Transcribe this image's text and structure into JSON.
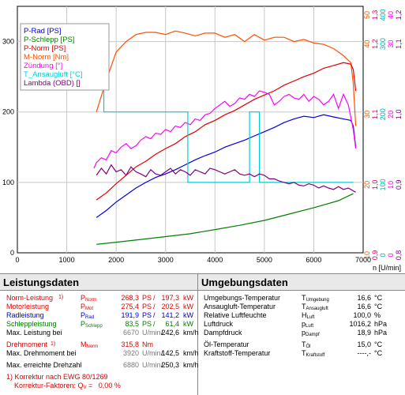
{
  "chart_data": {
    "type": "line",
    "xlabel": "n [U/min]",
    "xlim": [
      0,
      7000
    ],
    "xticks": [
      0,
      1000,
      2000,
      3000,
      4000,
      5000,
      6000,
      7000
    ],
    "left_axis": {
      "ylim": [
        0,
        350
      ],
      "ticks": [
        0,
        100,
        200,
        300
      ]
    },
    "right_axes": [
      {
        "color": "#e06000",
        "ticks": [
          "10",
          "20",
          "30",
          "40",
          "50"
        ]
      },
      {
        "color": "#d0006a",
        "ticks": [
          "0,9",
          "1,0",
          "1,1",
          "1,2",
          "1,3"
        ]
      },
      {
        "color": "#00b0b0",
        "ticks": [
          "0",
          "100",
          "200",
          "300",
          "400"
        ]
      },
      {
        "color": "#ff00ff",
        "ticks": [
          "0",
          "10",
          "20",
          "30",
          "40"
        ]
      },
      {
        "color": "#800080",
        "ticks": [
          "0,8",
          "0,9",
          "1,0",
          "1,1",
          "1,2"
        ]
      }
    ],
    "legend": [
      {
        "label": "P-Rad [PS]",
        "color": "#0000e0"
      },
      {
        "label": "P-Schlepp [PS]",
        "color": "#008000"
      },
      {
        "label": "P-Norm [PS]",
        "color": "#e00000"
      },
      {
        "label": "M-Norm [Nm]",
        "color": "#ff5000"
      },
      {
        "label": "Zündung [°]",
        "color": "#ff00ff"
      },
      {
        "label": "T_Ansaugluft [°C]",
        "color": "#00d0d0"
      },
      {
        "label": "Lambda (OBD) []",
        "color": "#800080"
      }
    ],
    "series": [
      {
        "name": "M-Norm [Nm]",
        "color": "#ff5000",
        "x": [
          1600,
          1800,
          2000,
          2200,
          2400,
          2600,
          2800,
          3000,
          3200,
          3400,
          3600,
          3800,
          4000,
          4200,
          4400,
          4600,
          4800,
          5000,
          5200,
          5400,
          5600,
          5800,
          6000,
          6200,
          6400,
          6600,
          6750,
          6800,
          6850
        ],
        "y": [
          200,
          245,
          285,
          300,
          310,
          313,
          313,
          310,
          315,
          312,
          308,
          312,
          312,
          306,
          310,
          300,
          310,
          302,
          306,
          306,
          300,
          303,
          298,
          296,
          290,
          280,
          270,
          240,
          180
        ]
      },
      {
        "name": "P-Norm [PS]",
        "color": "#e00000",
        "x": [
          1600,
          1800,
          2000,
          2200,
          2400,
          2600,
          2800,
          3000,
          3200,
          3400,
          3600,
          3800,
          4000,
          4200,
          4400,
          4600,
          4800,
          5000,
          5200,
          5400,
          5600,
          5800,
          6000,
          6200,
          6400,
          6600,
          6750,
          6800,
          6850
        ],
        "y": [
          75,
          85,
          98,
          110,
          122,
          130,
          140,
          148,
          155,
          165,
          172,
          182,
          188,
          196,
          202,
          210,
          218,
          224,
          230,
          238,
          244,
          250,
          255,
          262,
          266,
          270,
          268,
          260,
          230
        ]
      },
      {
        "name": "P-Rad [PS]",
        "color": "#0000e0",
        "x": [
          1600,
          1800,
          2000,
          2200,
          2400,
          2600,
          2800,
          3000,
          3200,
          3400,
          3600,
          3800,
          4000,
          4200,
          4400,
          4600,
          4800,
          5000,
          5200,
          5400,
          5600,
          5800,
          6000,
          6200,
          6400,
          6600,
          6750,
          6800,
          6850
        ],
        "y": [
          50,
          60,
          72,
          82,
          92,
          100,
          107,
          112,
          118,
          125,
          132,
          138,
          143,
          150,
          155,
          160,
          166,
          172,
          178,
          185,
          190,
          194,
          192,
          196,
          193,
          190,
          188,
          180,
          150
        ]
      },
      {
        "name": "P-Schlepp [PS]",
        "color": "#008000",
        "x": [
          1600,
          2000,
          2500,
          3000,
          3500,
          4000,
          4500,
          5000,
          5500,
          6000,
          6500,
          6800
        ],
        "y": [
          12,
          15,
          19,
          23,
          27,
          33,
          39,
          46,
          55,
          64,
          74,
          84
        ]
      },
      {
        "name": "Zündung [°]",
        "color": "#ff00ff",
        "x": [
          1550,
          1600,
          1700,
          1800,
          1900,
          2000,
          2100,
          2200,
          2300,
          2400,
          2500,
          2600,
          2700,
          2800,
          2900,
          3000,
          3100,
          3200,
          3300,
          3400,
          3500,
          3600,
          3700,
          3800,
          3900,
          4000,
          4100,
          4200,
          4300,
          4400,
          4500,
          4600,
          4700,
          4800,
          4900,
          5000,
          5100,
          5200,
          5300,
          5400,
          5500,
          5600,
          5700,
          5800,
          5900,
          6000,
          6100,
          6200,
          6300,
          6400,
          6500,
          6600,
          6700,
          6800,
          6850
        ],
        "y": [
          120,
          128,
          135,
          132,
          145,
          142,
          150,
          155,
          148,
          152,
          160,
          165,
          162,
          170,
          168,
          175,
          172,
          180,
          178,
          185,
          182,
          190,
          188,
          196,
          198,
          205,
          210,
          215,
          208,
          212,
          220,
          218,
          225,
          222,
          230,
          228,
          225,
          210,
          215,
          222,
          225,
          220,
          218,
          225,
          215,
          222,
          218,
          210,
          215,
          225,
          205,
          225,
          210,
          175,
          148
        ]
      },
      {
        "name": "T_Ansaugluft [°C]",
        "color": "#00d0d0",
        "x": [
          1550,
          1750,
          1750,
          2000,
          2400,
          2400,
          3000,
          3450,
          3450,
          4000,
          4700,
          4700,
          4900,
          4900,
          5300,
          5700,
          6000,
          6400,
          6800
        ],
        "y": [
          300,
          300,
          200,
          200,
          200,
          200,
          200,
          200,
          100,
          100,
          100,
          200,
          200,
          100,
          100,
          100,
          100,
          100,
          100
        ]
      },
      {
        "name": "Lambda (OBD) []",
        "color": "#800080",
        "x": [
          1600,
          1700,
          1800,
          1900,
          2000,
          2100,
          2200,
          2300,
          2400,
          2500,
          2600,
          2700,
          2800,
          2900,
          3000,
          3100,
          3200,
          3300,
          3400,
          3500,
          3600,
          3700,
          3800,
          3900,
          4000,
          4100,
          4200,
          4300,
          4400,
          4500,
          4600,
          4700,
          4800,
          4900,
          5000,
          5100,
          5200,
          5300,
          5400,
          5500,
          5600,
          5700,
          5800,
          5900,
          6000,
          6100,
          6200,
          6300,
          6400,
          6500,
          6600,
          6700,
          6800,
          6850
        ],
        "y": [
          110,
          120,
          112,
          125,
          115,
          118,
          110,
          122,
          115,
          112,
          108,
          118,
          112,
          110,
          115,
          120,
          112,
          118,
          115,
          110,
          118,
          115,
          112,
          120,
          118,
          115,
          112,
          115,
          118,
          112,
          110,
          112,
          108,
          112,
          110,
          105,
          105,
          102,
          100,
          98,
          100,
          96,
          95,
          98,
          96,
          92,
          95,
          92,
          90,
          94,
          90,
          92,
          88,
          86
        ]
      }
    ]
  },
  "tables": {
    "left_title": "Leistungsdaten",
    "right_title": "Umgebungsdaten",
    "norm_power": {
      "label": "Norm-Leistung",
      "note": "1)",
      "sym": "P",
      "sub": "Norm",
      "ps": "268,3",
      "u1": "PS",
      "sep": "/",
      "kw": "197,3",
      "u2": "kW"
    },
    "motor_power": {
      "label": "Motorleistung",
      "sym": "P",
      "sub": "Mot",
      "ps": "275,4",
      "u1": "PS",
      "sep": "/",
      "kw": "202,5",
      "u2": "kW"
    },
    "wheel_power": {
      "label": "Radleistung",
      "sym": "P",
      "sub": "Rad",
      "ps": "191,9",
      "u1": "PS",
      "sep": "/",
      "kw": "141,2",
      "u2": "kW"
    },
    "drag_power": {
      "label": "Schleppleistung",
      "sym": "P",
      "sub": "Schlepp",
      "ps": "83,5",
      "u1": "PS",
      "sep": "/",
      "kw": "61,4",
      "u2": "kW"
    },
    "max_power_at": {
      "label": "Max. Leistung bei",
      "rpm": "6670",
      "unit": "U/min",
      "sep": "/",
      "speed": "242,6",
      "speed_unit": "km/h"
    },
    "torque": {
      "label": "Drehmoment",
      "note": "1)",
      "sym": "M",
      "sub": "Norm",
      "val": "315,8",
      "unit": "Nm"
    },
    "max_torque_at": {
      "label": "Max. Drehmoment bei",
      "rpm": "3920",
      "unit": "U/min",
      "sep": "/",
      "speed": "142,5",
      "speed_unit": "km/h"
    },
    "max_rpm": {
      "label": "Max. erreichte Drehzahl",
      "rpm": "6880",
      "unit": "U/min",
      "sep": "/",
      "speed": "250,3",
      "speed_unit": "km/h"
    },
    "footnote1": "1) Korrektur nach EWG 80/1269",
    "footnote2_label": "Korrektur-Faktoren: Q",
    "footnote2_sub": "V",
    "footnote2_val": " =   0,00 %",
    "env": [
      {
        "label": "Umgebungs-Temperatur",
        "sym": "T",
        "sub": "Umgebung",
        "val": "16,6",
        "unit": "°C"
      },
      {
        "label": "Ansaugluft-Temperatur",
        "sym": "T",
        "sub": "Ansaugluft",
        "val": "16,6",
        "unit": "°C"
      },
      {
        "label": "Relative Luftfeuchte",
        "sym": "H",
        "sub": "Luft",
        "val": "100,0",
        "unit": "%"
      },
      {
        "label": "Luftdruck",
        "sym": "p",
        "sub": "Luft",
        "val": "1016,2",
        "unit": "hPa"
      },
      {
        "label": "Dampfdruck",
        "sym": "p",
        "sub": "Dampf",
        "val": "18,9",
        "unit": "hPa"
      },
      {
        "label": "Öl-Temperatur",
        "sym": "T",
        "sub": "Öl",
        "val": "15,0",
        "unit": "°C"
      },
      {
        "label": "Kraftstoff-Temperatur",
        "sym": "T",
        "sub": "Kraftstoff",
        "val": "----,-",
        "unit": "°C"
      }
    ]
  }
}
